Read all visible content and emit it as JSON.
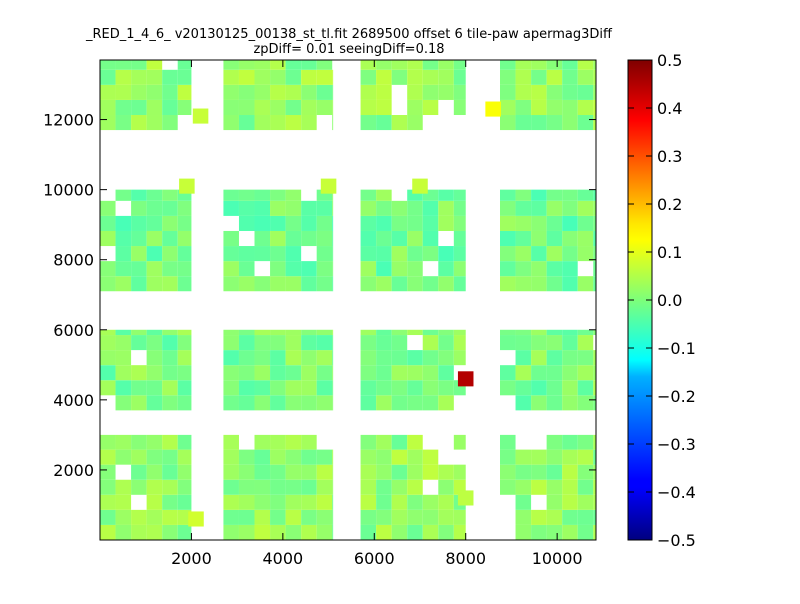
{
  "chart_data": {
    "type": "heatmap",
    "title_line1": "_RED_1_4_6_ v20130125_00138_st_tl.fit 2689500 offset 6 tile-paw apermag3Diff",
    "title_line2": "zpDiff= 0.01 seeingDiff=0.18",
    "xlabel": "",
    "ylabel": "",
    "xlim": [
      0,
      10850
    ],
    "ylim": [
      0,
      13700
    ],
    "xticks": [
      2000,
      4000,
      6000,
      8000,
      10000
    ],
    "yticks": [
      2000,
      4000,
      6000,
      8000,
      10000,
      12000
    ],
    "grid": false,
    "colormap": "jet",
    "colorbar": {
      "min": -0.5,
      "max": 0.5,
      "ticks": [
        "0.5",
        "0.4",
        "0.3",
        "0.2",
        "0.1",
        "0.0",
        "−0.1",
        "−0.2",
        "−0.3",
        "−0.4",
        "−0.5"
      ]
    },
    "cell_size_x": 340,
    "cell_size_y": 430,
    "rows": [
      {
        "y0": 0,
        "y1": 3000,
        "x_blocks": [
          [
            0,
            2000
          ],
          [
            2700,
            5100
          ],
          [
            5700,
            8000
          ],
          [
            8750,
            10850
          ]
        ],
        "typical_value": 0.02
      },
      {
        "y0": 3700,
        "y1": 6000,
        "x_blocks": [
          [
            0,
            2000
          ],
          [
            2700,
            5100
          ],
          [
            5700,
            8000
          ],
          [
            8750,
            10850
          ]
        ],
        "typical_value": 0.0
      },
      {
        "y0": 7100,
        "y1": 10000,
        "x_blocks": [
          [
            0,
            2000
          ],
          [
            2700,
            5100
          ],
          [
            5700,
            8000
          ],
          [
            8750,
            10850
          ]
        ],
        "typical_value": -0.01
      },
      {
        "y0": 11700,
        "y1": 13700,
        "x_blocks": [
          [
            0,
            2000
          ],
          [
            2700,
            5100
          ],
          [
            5700,
            8000
          ],
          [
            8750,
            10850
          ]
        ],
        "typical_value": 0.02
      }
    ],
    "highlights": [
      {
        "x": 8000,
        "y": 4600,
        "value": 0.45
      },
      {
        "x": 8600,
        "y": 12300,
        "value": 0.12
      },
      {
        "x": 2100,
        "y": 600,
        "value": 0.08
      },
      {
        "x": 1900,
        "y": 10100,
        "value": 0.07
      },
      {
        "x": 5000,
        "y": 10100,
        "value": 0.07
      },
      {
        "x": 7000,
        "y": 10100,
        "value": 0.07
      },
      {
        "x": 2200,
        "y": 12100,
        "value": 0.07
      },
      {
        "x": 8000,
        "y": 1200,
        "value": 0.06
      }
    ]
  }
}
